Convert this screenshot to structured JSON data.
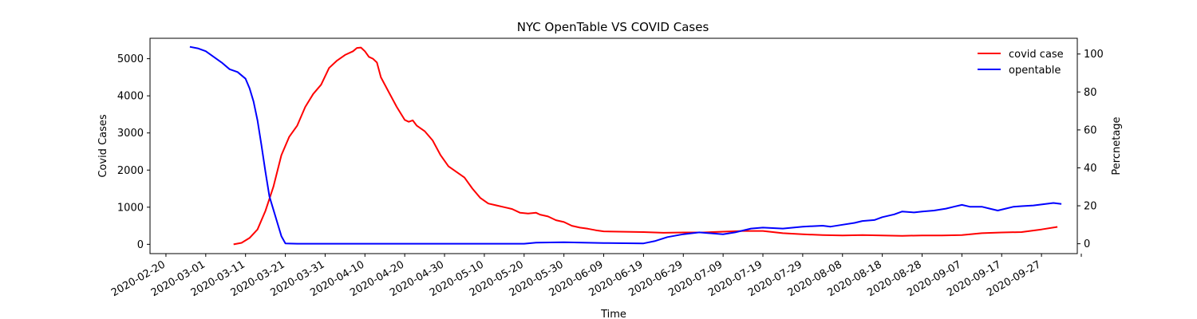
{
  "chart_data": {
    "type": "line",
    "title": "NYC OpenTable VS COVID Cases",
    "xlabel": "Time",
    "ylabel_left": "Covid Cases",
    "ylabel_right": "Percnetage",
    "xlim": [
      "2020-02-16",
      "2020-10-06"
    ],
    "ylim_left": [
      -250,
      5550
    ],
    "ylim_right": [
      -5.2,
      108.3
    ],
    "x_ticks": [
      "2020-02-20",
      "2020-03-01",
      "2020-03-11",
      "2020-03-21",
      "2020-03-31",
      "2020-04-10",
      "2020-04-20",
      "2020-04-30",
      "2020-05-10",
      "2020-05-20",
      "2020-05-30",
      "2020-06-09",
      "2020-06-19",
      "2020-06-29",
      "2020-07-09",
      "2020-07-19",
      "2020-07-29",
      "2020-08-08",
      "2020-08-18",
      "2020-08-28",
      "2020-09-07",
      "2020-09-17",
      "2020-09-27"
    ],
    "y_ticks_left": [
      0,
      1000,
      2000,
      3000,
      4000,
      5000
    ],
    "y_ticks_right": [
      0,
      20,
      40,
      60,
      80,
      100
    ],
    "legend_position": "top-right",
    "grid": false,
    "series": [
      {
        "name": "covid case",
        "color": "#ff0000",
        "axis": "left",
        "points": [
          [
            "2020-03-08",
            0
          ],
          [
            "2020-03-10",
            40
          ],
          [
            "2020-03-12",
            170
          ],
          [
            "2020-03-14",
            400
          ],
          [
            "2020-03-16",
            900
          ],
          [
            "2020-03-18",
            1550
          ],
          [
            "2020-03-20",
            2400
          ],
          [
            "2020-03-22",
            2900
          ],
          [
            "2020-03-24",
            3200
          ],
          [
            "2020-03-26",
            3700
          ],
          [
            "2020-03-28",
            4050
          ],
          [
            "2020-03-30",
            4300
          ],
          [
            "2020-04-01",
            4750
          ],
          [
            "2020-04-03",
            4950
          ],
          [
            "2020-04-05",
            5100
          ],
          [
            "2020-04-07",
            5200
          ],
          [
            "2020-04-08",
            5290
          ],
          [
            "2020-04-09",
            5300
          ],
          [
            "2020-04-10",
            5200
          ],
          [
            "2020-04-11",
            5050
          ],
          [
            "2020-04-12",
            5000
          ],
          [
            "2020-04-13",
            4900
          ],
          [
            "2020-04-14",
            4500
          ],
          [
            "2020-04-16",
            4100
          ],
          [
            "2020-04-18",
            3700
          ],
          [
            "2020-04-20",
            3350
          ],
          [
            "2020-04-21",
            3300
          ],
          [
            "2020-04-22",
            3340
          ],
          [
            "2020-04-23",
            3200
          ],
          [
            "2020-04-25",
            3050
          ],
          [
            "2020-04-27",
            2800
          ],
          [
            "2020-04-29",
            2400
          ],
          [
            "2020-05-01",
            2100
          ],
          [
            "2020-05-03",
            1950
          ],
          [
            "2020-05-05",
            1800
          ],
          [
            "2020-05-07",
            1500
          ],
          [
            "2020-05-09",
            1250
          ],
          [
            "2020-05-11",
            1100
          ],
          [
            "2020-05-13",
            1050
          ],
          [
            "2020-05-15",
            1000
          ],
          [
            "2020-05-17",
            950
          ],
          [
            "2020-05-19",
            850
          ],
          [
            "2020-05-21",
            830
          ],
          [
            "2020-05-23",
            850
          ],
          [
            "2020-05-24",
            800
          ],
          [
            "2020-05-26",
            750
          ],
          [
            "2020-05-28",
            650
          ],
          [
            "2020-05-30",
            600
          ],
          [
            "2020-06-01",
            500
          ],
          [
            "2020-06-03",
            450
          ],
          [
            "2020-06-05",
            420
          ],
          [
            "2020-06-07",
            380
          ],
          [
            "2020-06-09",
            350
          ],
          [
            "2020-06-13",
            340
          ],
          [
            "2020-06-19",
            330
          ],
          [
            "2020-06-24",
            310
          ],
          [
            "2020-06-29",
            320
          ],
          [
            "2020-07-04",
            320
          ],
          [
            "2020-07-09",
            340
          ],
          [
            "2020-07-14",
            360
          ],
          [
            "2020-07-19",
            360
          ],
          [
            "2020-07-24",
            300
          ],
          [
            "2020-07-29",
            270
          ],
          [
            "2020-08-03",
            250
          ],
          [
            "2020-08-08",
            240
          ],
          [
            "2020-08-13",
            250
          ],
          [
            "2020-08-18",
            240
          ],
          [
            "2020-08-23",
            230
          ],
          [
            "2020-08-28",
            240
          ],
          [
            "2020-09-02",
            240
          ],
          [
            "2020-09-07",
            250
          ],
          [
            "2020-09-12",
            300
          ],
          [
            "2020-09-17",
            320
          ],
          [
            "2020-09-22",
            330
          ],
          [
            "2020-09-27",
            400
          ],
          [
            "2020-10-01",
            470
          ]
        ]
      },
      {
        "name": "opentable",
        "color": "#0000ff",
        "axis": "right",
        "points": [
          [
            "2020-02-26",
            103.8
          ],
          [
            "2020-02-28",
            103.0
          ],
          [
            "2020-03-01",
            101.5
          ],
          [
            "2020-03-03",
            98.5
          ],
          [
            "2020-03-05",
            95.5
          ],
          [
            "2020-03-07",
            92.0
          ],
          [
            "2020-03-09",
            90.5
          ],
          [
            "2020-03-11",
            87.0
          ],
          [
            "2020-03-12",
            82.0
          ],
          [
            "2020-03-13",
            75.0
          ],
          [
            "2020-03-14",
            65.0
          ],
          [
            "2020-03-15",
            52.0
          ],
          [
            "2020-03-16",
            38.0
          ],
          [
            "2020-03-17",
            25.0
          ],
          [
            "2020-03-18",
            18.0
          ],
          [
            "2020-03-19",
            11.0
          ],
          [
            "2020-03-20",
            4.0
          ],
          [
            "2020-03-21",
            0.2
          ],
          [
            "2020-03-24",
            0
          ],
          [
            "2020-04-30",
            0
          ],
          [
            "2020-05-20",
            0
          ],
          [
            "2020-05-23",
            0.6
          ],
          [
            "2020-05-30",
            0.8
          ],
          [
            "2020-06-09",
            0.4
          ],
          [
            "2020-06-19",
            0.2
          ],
          [
            "2020-06-22",
            1.5
          ],
          [
            "2020-06-25",
            3.5
          ],
          [
            "2020-06-29",
            5.0
          ],
          [
            "2020-07-03",
            6.0
          ],
          [
            "2020-07-09",
            5.0
          ],
          [
            "2020-07-12",
            6.0
          ],
          [
            "2020-07-16",
            8.0
          ],
          [
            "2020-07-19",
            8.5
          ],
          [
            "2020-07-24",
            8.0
          ],
          [
            "2020-07-29",
            9.0
          ],
          [
            "2020-08-03",
            9.5
          ],
          [
            "2020-08-05",
            9.0
          ],
          [
            "2020-08-08",
            10.0
          ],
          [
            "2020-08-11",
            11.0
          ],
          [
            "2020-08-13",
            12.0
          ],
          [
            "2020-08-16",
            12.5
          ],
          [
            "2020-08-18",
            14.0
          ],
          [
            "2020-08-21",
            15.5
          ],
          [
            "2020-08-23",
            17.0
          ],
          [
            "2020-08-26",
            16.5
          ],
          [
            "2020-08-28",
            17.0
          ],
          [
            "2020-08-31",
            17.5
          ],
          [
            "2020-09-03",
            18.5
          ],
          [
            "2020-09-05",
            19.5
          ],
          [
            "2020-09-07",
            20.5
          ],
          [
            "2020-09-09",
            19.5
          ],
          [
            "2020-09-12",
            19.5
          ],
          [
            "2020-09-14",
            18.5
          ],
          [
            "2020-09-16",
            17.5
          ],
          [
            "2020-09-18",
            18.5
          ],
          [
            "2020-09-20",
            19.5
          ],
          [
            "2020-09-22",
            19.8
          ],
          [
            "2020-09-25",
            20.2
          ],
          [
            "2020-09-28",
            21.0
          ],
          [
            "2020-09-30",
            21.5
          ],
          [
            "2020-10-02",
            21.0
          ]
        ]
      }
    ]
  }
}
